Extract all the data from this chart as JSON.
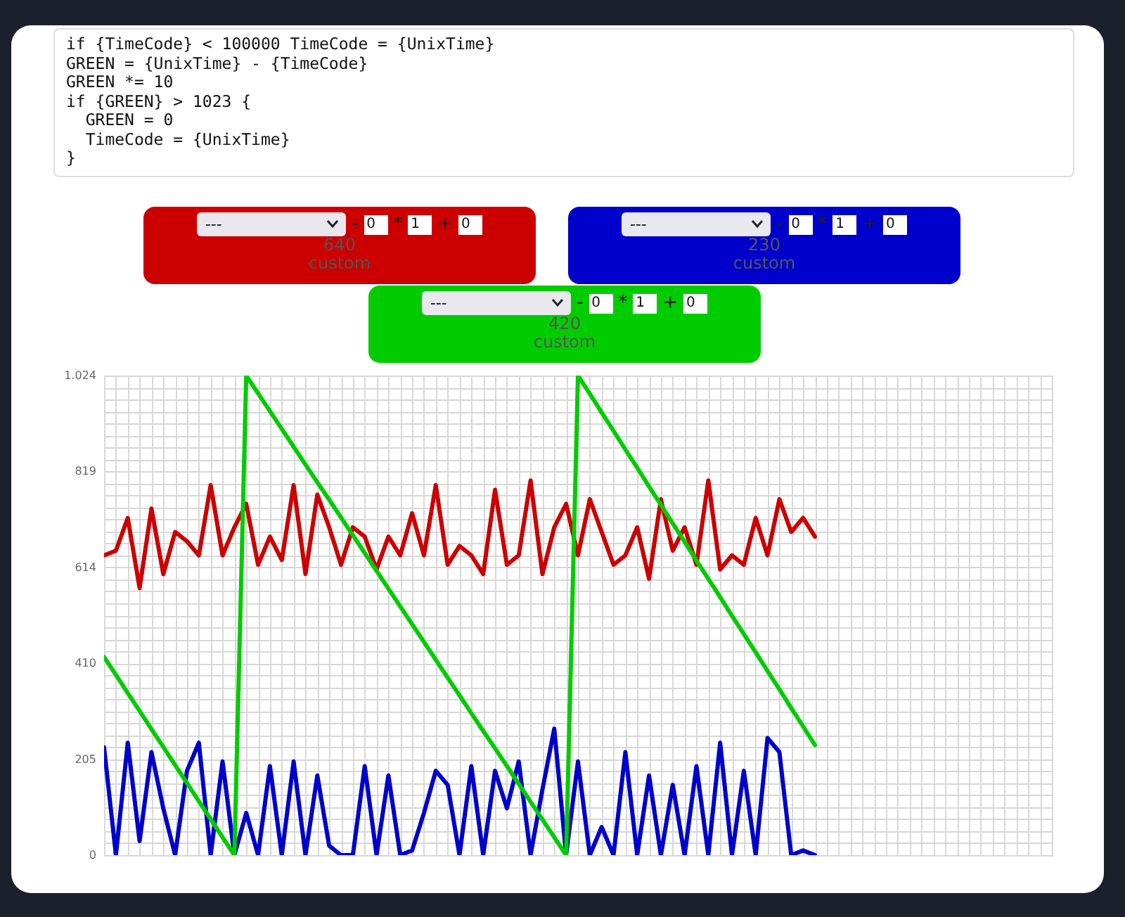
{
  "chart_data": {
    "type": "line",
    "annotations": [
      "if {TimeCode} < 100000 TimeCode = {UnixTime}",
      "GREEN = {UnixTime} - {TimeCode}",
      "GREEN *= 10",
      "if {GREEN} > 1023 {",
      "  GREEN = 0",
      "  TimeCode = {UnixTime}",
      "}",
      "---",
      "-",
      "0",
      "*",
      "1",
      "+",
      "0",
      "640",
      "custom",
      "---",
      "-",
      "0",
      "*",
      "1",
      "+",
      "0",
      "230",
      "custom",
      "---",
      "-",
      "0",
      "*",
      "1",
      "+",
      "0",
      "420",
      "custom"
    ],
    "categories": [
      null,
      null,
      null,
      null,
      null,
      null,
      null,
      null,
      null,
      null,
      null,
      null,
      null,
      null,
      null,
      null,
      null,
      null,
      null,
      null,
      null,
      null,
      null,
      null,
      null,
      null,
      null,
      null,
      null,
      null,
      null,
      null,
      null,
      null,
      null,
      null,
      null,
      null,
      null,
      null,
      null,
      null,
      null,
      null,
      null,
      null,
      null,
      null,
      null,
      null,
      null,
      null,
      null,
      null,
      null,
      null,
      null,
      null,
      null,
      null,
      null,
      null,
      null,
      null,
      null,
      null,
      null,
      null,
      null,
      null,
      null,
      null,
      null,
      null,
      null,
      null,
      null,
      null,
      null,
      null,
      null
    ],
    "series": [
      {
        "color": "#cc0000",
        "values": [
          640,
          650,
          720,
          570,
          740,
          600,
          690,
          670,
          640,
          790,
          640,
          700,
          750,
          620,
          680,
          630,
          790,
          600,
          770,
          700,
          620,
          700,
          680,
          610,
          680,
          640,
          730,
          640,
          790,
          620,
          660,
          640,
          600,
          780,
          620,
          640,
          800,
          600,
          700,
          750,
          640,
          760,
          690,
          620,
          640,
          700,
          590,
          760,
          650,
          700,
          620,
          800,
          610,
          640,
          620,
          720,
          640,
          760,
          690,
          720,
          680,
          null,
          null,
          null,
          null,
          null,
          null,
          null,
          null,
          null,
          null,
          null,
          null,
          null,
          null,
          null,
          null,
          null,
          null,
          null,
          null
        ]
      },
      {
        "color": "#0000cc",
        "values": [
          230,
          0,
          240,
          30,
          220,
          100,
          0,
          180,
          240,
          0,
          200,
          0,
          90,
          0,
          190,
          0,
          200,
          0,
          170,
          20,
          0,
          0,
          190,
          0,
          170,
          0,
          10,
          90,
          180,
          150,
          0,
          190,
          0,
          180,
          100,
          200,
          0,
          140,
          270,
          0,
          200,
          0,
          60,
          0,
          220,
          0,
          170,
          0,
          150,
          0,
          190,
          0,
          240,
          0,
          180,
          0,
          250,
          220,
          0,
          10,
          0,
          null,
          null,
          null,
          null,
          null,
          null,
          null,
          null,
          null,
          null,
          null,
          null,
          null,
          null,
          null,
          null,
          null,
          null,
          null,
          null
        ]
      },
      {
        "color": "#00cc00",
        "values": [
          423,
          385,
          346,
          308,
          269,
          231,
          192,
          154,
          115,
          77,
          38,
          0,
          1024,
          986,
          948,
          910,
          872,
          834,
          796,
          759,
          721,
          683,
          645,
          607,
          569,
          531,
          493,
          455,
          417,
          379,
          341,
          303,
          265,
          228,
          190,
          152,
          114,
          76,
          38,
          0,
          1024,
          985,
          945,
          906,
          866,
          827,
          787,
          748,
          708,
          669,
          629,
          590,
          551,
          511,
          472,
          433,
          393,
          354,
          314,
          275,
          235,
          null,
          null,
          null,
          null,
          null,
          null,
          null,
          null,
          null,
          null,
          null,
          null,
          null,
          null,
          null,
          null,
          null,
          null,
          null,
          null
        ]
      }
    ],
    "ylim": [
      0,
      1024
    ],
    "yticks": [
      0,
      {
        "value": 25.6,
        "label": null
      },
      {
        "value": 51.2,
        "label": null
      },
      {
        "value": 76.8,
        "label": null
      },
      {
        "value": 102.4,
        "label": null
      },
      {
        "value": 128,
        "label": null
      },
      {
        "value": 153.6,
        "label": null
      },
      {
        "value": 179.2,
        "label": null
      },
      {
        "value": 204.8,
        "label": "205"
      },
      {
        "value": 230.4,
        "label": null
      },
      {
        "value": 256,
        "label": null
      },
      {
        "value": 281.6,
        "label": null
      },
      {
        "value": 307.2,
        "label": null
      },
      {
        "value": 332.8,
        "label": null
      },
      {
        "value": 358.4,
        "label": null
      },
      {
        "value": 384,
        "label": null
      },
      {
        "value": 409.6,
        "label": "410"
      },
      {
        "value": 435.2,
        "label": null
      },
      {
        "value": 460.8,
        "label": null
      },
      {
        "value": 486.4,
        "label": null
      },
      {
        "value": 512,
        "label": null
      },
      {
        "value": 537.6,
        "label": null
      },
      {
        "value": 563.2,
        "label": null
      },
      {
        "value": 588.8,
        "label": null
      },
      {
        "value": 614.4,
        "label": "614"
      },
      {
        "value": 640,
        "label": null
      },
      {
        "value": 665.6,
        "label": null
      },
      {
        "value": 691.2,
        "label": null
      },
      {
        "value": 716.8,
        "label": null
      },
      {
        "value": 742.4,
        "label": null
      },
      {
        "value": 768,
        "label": null
      },
      {
        "value": 793.6,
        "label": null
      },
      {
        "value": 819.2,
        "label": "819"
      },
      {
        "value": 844.8,
        "label": null
      },
      {
        "value": 870.4,
        "label": null
      },
      {
        "value": 896,
        "label": null
      },
      {
        "value": 921.6,
        "label": null
      },
      {
        "value": 947.2,
        "label": null
      },
      {
        "value": 972.8,
        "label": null
      },
      {
        "value": 998.4,
        "label": null
      },
      {
        "value": 1024,
        "label": "1.024"
      }
    ],
    "grid": true,
    "tick_labels": "y"
  }
}
